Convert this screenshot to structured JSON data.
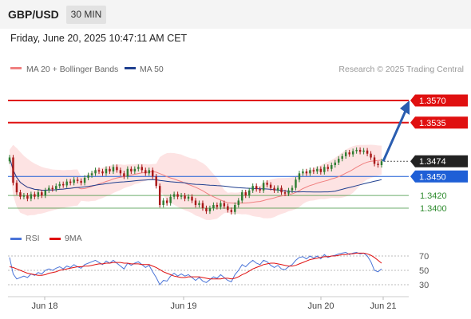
{
  "header": {
    "symbol": "GBP/USD",
    "timeframe": "30 MIN",
    "datetime": "Friday, June 20, 2025 10:47:11 AM CET"
  },
  "legend": {
    "ma20_label": "MA 20 + Bollinger Bands",
    "ma50_label": "MA 50",
    "credit": "Research © 2025 Trading Central"
  },
  "levels": [
    {
      "value": 1.357,
      "label": "1.3570",
      "kind": "resistance",
      "color": "#e01010"
    },
    {
      "value": 1.3535,
      "label": "1.3535",
      "kind": "resistance",
      "color": "#e01010"
    },
    {
      "value": 1.3474,
      "label": "1.3474",
      "kind": "last",
      "color": "#222222"
    },
    {
      "value": 1.345,
      "label": "1.3450",
      "kind": "pivot",
      "color": "#1f5fd6"
    },
    {
      "value": 1.342,
      "label": "1.3420",
      "kind": "support",
      "color": "#2e8b2e"
    },
    {
      "value": 1.34,
      "label": "1.3400",
      "kind": "support",
      "color": "#2e8b2e"
    }
  ],
  "rsi_legend": {
    "rsi_label": "RSI",
    "ma_label": "9MA"
  },
  "rsi_levels": [
    {
      "value": 70,
      "label": "70"
    },
    {
      "value": 50,
      "label": "50"
    },
    {
      "value": 30,
      "label": "30"
    }
  ],
  "x_axis": {
    "labels": [
      "Jun 18",
      "Jun 19",
      "Jun 20",
      "Jun 21"
    ]
  },
  "colors": {
    "up_candle": "#2e7d32",
    "down_candle": "#a81818",
    "ma20": "#f08080",
    "bollinger_fill": "#fde0e0",
    "ma50": "#1f3f8f",
    "rsi": "#4a74d8",
    "rsi_ma": "#e01010",
    "arrow": "#2a5db0"
  },
  "chart_data": {
    "type": "candlestick",
    "time_axis": [
      "Jun 18",
      "Jun 19",
      "Jun 20",
      "Jun 21"
    ],
    "close_series": [
      1.348,
      1.344,
      1.3425,
      1.3418,
      1.342,
      1.3415,
      1.3422,
      1.3418,
      1.3425,
      1.342,
      1.3428,
      1.3432,
      1.343,
      1.3435,
      1.3438,
      1.3436,
      1.3442,
      1.344,
      1.3445,
      1.3443,
      1.344,
      1.3448,
      1.3452,
      1.3455,
      1.346,
      1.3458,
      1.3455,
      1.3462,
      1.3458,
      1.3465,
      1.346,
      1.3455,
      1.345,
      1.3462,
      1.3458,
      1.3462,
      1.3465,
      1.346,
      1.3455,
      1.346,
      1.345,
      1.3435,
      1.3405,
      1.3412,
      1.3408,
      1.3418,
      1.3422,
      1.3418,
      1.342,
      1.3415,
      1.3418,
      1.3412,
      1.3405,
      1.3408,
      1.34,
      1.3395,
      1.34,
      1.3405,
      1.3402,
      1.3408,
      1.3403,
      1.3397,
      1.3394,
      1.3405,
      1.3412,
      1.3425,
      1.342,
      1.3428,
      1.3435,
      1.343,
      1.3428,
      1.344,
      1.3437,
      1.3432,
      1.3428,
      1.3432,
      1.3425,
      1.3423,
      1.3428,
      1.3432,
      1.3445,
      1.3455,
      1.3458,
      1.3455,
      1.346,
      1.3458,
      1.3462,
      1.3457,
      1.3465,
      1.3462,
      1.3468,
      1.3472,
      1.3478,
      1.3482,
      1.3488,
      1.3485,
      1.349,
      1.3492,
      1.3489,
      1.3491,
      1.3486,
      1.348,
      1.347,
      1.3468,
      1.3474
    ],
    "rsi": [
      68,
      45,
      38,
      40,
      42,
      40,
      45,
      43,
      47,
      45,
      50,
      52,
      50,
      53,
      55,
      52,
      56,
      54,
      58,
      55,
      53,
      58,
      60,
      62,
      64,
      61,
      58,
      63,
      60,
      64,
      60,
      56,
      52,
      60,
      57,
      60,
      62,
      58,
      54,
      57,
      48,
      40,
      30,
      36,
      35,
      42,
      46,
      42,
      45,
      42,
      44,
      40,
      36,
      40,
      35,
      33,
      37,
      41,
      39,
      44,
      40,
      36,
      34,
      44,
      50,
      58,
      55,
      60,
      64,
      60,
      58,
      64,
      62,
      57,
      54,
      57,
      52,
      51,
      55,
      58,
      64,
      68,
      69,
      66,
      70,
      67,
      70,
      66,
      72,
      68,
      70,
      71,
      73,
      74,
      75,
      72,
      74,
      75,
      73,
      74,
      70,
      62,
      50,
      48,
      52
    ],
    "rsi_ma": [
      55,
      54,
      52,
      50,
      48,
      46,
      45,
      44,
      43,
      43,
      44,
      46,
      47,
      48,
      50,
      51,
      52,
      53,
      54,
      55,
      55,
      56,
      56,
      57,
      58,
      59,
      59,
      60,
      60,
      61,
      61,
      61,
      60,
      60,
      59,
      59,
      59,
      58,
      58,
      58,
      56,
      54,
      51,
      48,
      46,
      44,
      42,
      41,
      40,
      40,
      41,
      41,
      41,
      41,
      40,
      39,
      38,
      38,
      38,
      38,
      39,
      39,
      38,
      39,
      41,
      44,
      46,
      49,
      52,
      54,
      56,
      58,
      59,
      60,
      60,
      59,
      58,
      57,
      56,
      56,
      57,
      59,
      61,
      63,
      65,
      66,
      67,
      68,
      69,
      69,
      70,
      70,
      71,
      72,
      72,
      73,
      73,
      74,
      74,
      74,
      73,
      71,
      68,
      64,
      60
    ],
    "rsi_ylim": [
      20,
      80
    ],
    "forecast": {
      "from": 1.3474,
      "to": 1.357
    },
    "legend_placement": "top-left",
    "grid": false
  }
}
